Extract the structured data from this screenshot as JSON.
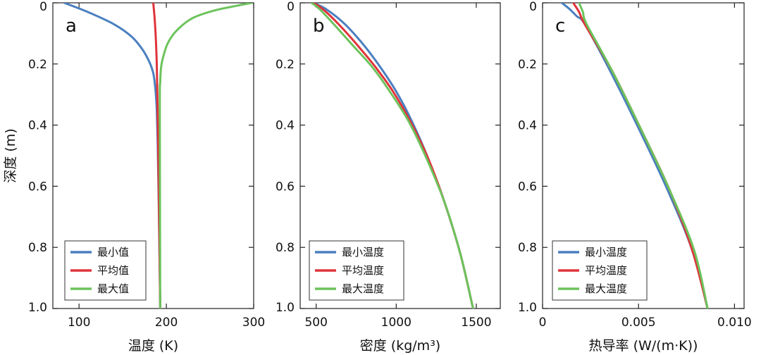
{
  "figure": {
    "ylabel": "深度 (m)"
  },
  "chart_data": [
    {
      "type": "line",
      "panel": "a",
      "xlabel": "温度 (K)",
      "ylabel": "深度 (m)",
      "xlim": [
        70,
        300
      ],
      "ylim": [
        0,
        1.0
      ],
      "y_inverted": true,
      "xticks": [
        100,
        200,
        300
      ],
      "yticks": [
        0,
        0.2,
        0.4,
        0.6,
        0.8,
        1.0
      ],
      "ytick_labels": [
        "0",
        "0.2",
        "0.4",
        "0.6",
        "0.8",
        "1.0"
      ],
      "legend_position": "bottom-left",
      "series": [
        {
          "name": "最小值",
          "color": "#4a7fbf",
          "x": [
            83,
            110,
            140,
            160,
            172,
            180,
            185,
            187,
            188,
            189,
            190,
            191,
            192,
            193
          ],
          "y": [
            0,
            0.03,
            0.07,
            0.11,
            0.15,
            0.19,
            0.23,
            0.27,
            0.3,
            0.35,
            0.45,
            0.6,
            0.8,
            1.0
          ]
        },
        {
          "name": "平均值",
          "color": "#e0343a",
          "x": [
            185,
            186,
            187,
            188,
            189,
            190,
            191,
            192,
            193
          ],
          "y": [
            0,
            0.03,
            0.07,
            0.12,
            0.2,
            0.35,
            0.55,
            0.78,
            1.0
          ]
        },
        {
          "name": "最大值",
          "color": "#6cc35c",
          "x": [
            298,
            280,
            255,
            230,
            212,
            202,
            197,
            194,
            193,
            192.5,
            193
          ],
          "y": [
            0,
            0.01,
            0.025,
            0.05,
            0.09,
            0.13,
            0.17,
            0.21,
            0.26,
            0.35,
            1.0
          ]
        }
      ]
    },
    {
      "type": "line",
      "panel": "b",
      "xlabel": "密度 (kg/m³)",
      "xlim": [
        400,
        1650
      ],
      "ylim": [
        0,
        1.0
      ],
      "y_inverted": true,
      "xticks": [
        500,
        1000,
        1500
      ],
      "legend_position": "bottom-left",
      "series": [
        {
          "name": "最小温度",
          "color": "#4a7fbf",
          "x": [
            480,
            560,
            680,
            800,
            900,
            1000,
            1100,
            1200,
            1300,
            1400,
            1480
          ],
          "y": [
            0,
            0.02,
            0.07,
            0.14,
            0.21,
            0.29,
            0.39,
            0.51,
            0.65,
            0.82,
            1.0
          ]
        },
        {
          "name": "平均温度",
          "color": "#e0343a",
          "x": [
            480,
            540,
            640,
            760,
            870,
            980,
            1090,
            1200,
            1300,
            1400,
            1480
          ],
          "y": [
            0,
            0.02,
            0.07,
            0.14,
            0.21,
            0.29,
            0.39,
            0.51,
            0.65,
            0.82,
            1.0
          ]
        },
        {
          "name": "最大温度",
          "color": "#6cc35c",
          "x": [
            470,
            520,
            610,
            730,
            850,
            960,
            1080,
            1190,
            1300,
            1400,
            1480
          ],
          "y": [
            0,
            0.02,
            0.07,
            0.14,
            0.21,
            0.29,
            0.39,
            0.51,
            0.65,
            0.82,
            1.0
          ]
        }
      ]
    },
    {
      "type": "line",
      "panel": "c",
      "xlabel": "热导率 (W/(m·K))",
      "xlim": [
        0,
        0.0105
      ],
      "ylim": [
        0,
        1.0
      ],
      "y_inverted": true,
      "xticks": [
        0,
        0.005,
        0.01
      ],
      "xtick_labels": [
        "0",
        "0.005",
        "0.010"
      ],
      "legend_position": "bottom-left",
      "series": [
        {
          "name": "最小温度",
          "color": "#4a7fbf",
          "x": [
            0.001,
            0.0014,
            0.0018,
            0.0022,
            0.0035,
            0.005,
            0.0065,
            0.0078,
            0.0086
          ],
          "y": [
            0,
            0.02,
            0.045,
            0.07,
            0.22,
            0.41,
            0.61,
            0.81,
            1.0
          ]
        },
        {
          "name": "平均温度",
          "color": "#e0343a",
          "x": [
            0.0016,
            0.0019,
            0.0022,
            0.0036,
            0.0051,
            0.0066,
            0.0078,
            0.0086
          ],
          "y": [
            0,
            0.03,
            0.07,
            0.22,
            0.41,
            0.61,
            0.81,
            1.0
          ]
        },
        {
          "name": "最大温度",
          "color": "#6cc35c",
          "x": [
            0.0019,
            0.0021,
            0.0023,
            0.0036,
            0.0051,
            0.0066,
            0.0079,
            0.0086
          ],
          "y": [
            0,
            0.03,
            0.07,
            0.22,
            0.41,
            0.61,
            0.81,
            1.0
          ]
        }
      ]
    }
  ]
}
